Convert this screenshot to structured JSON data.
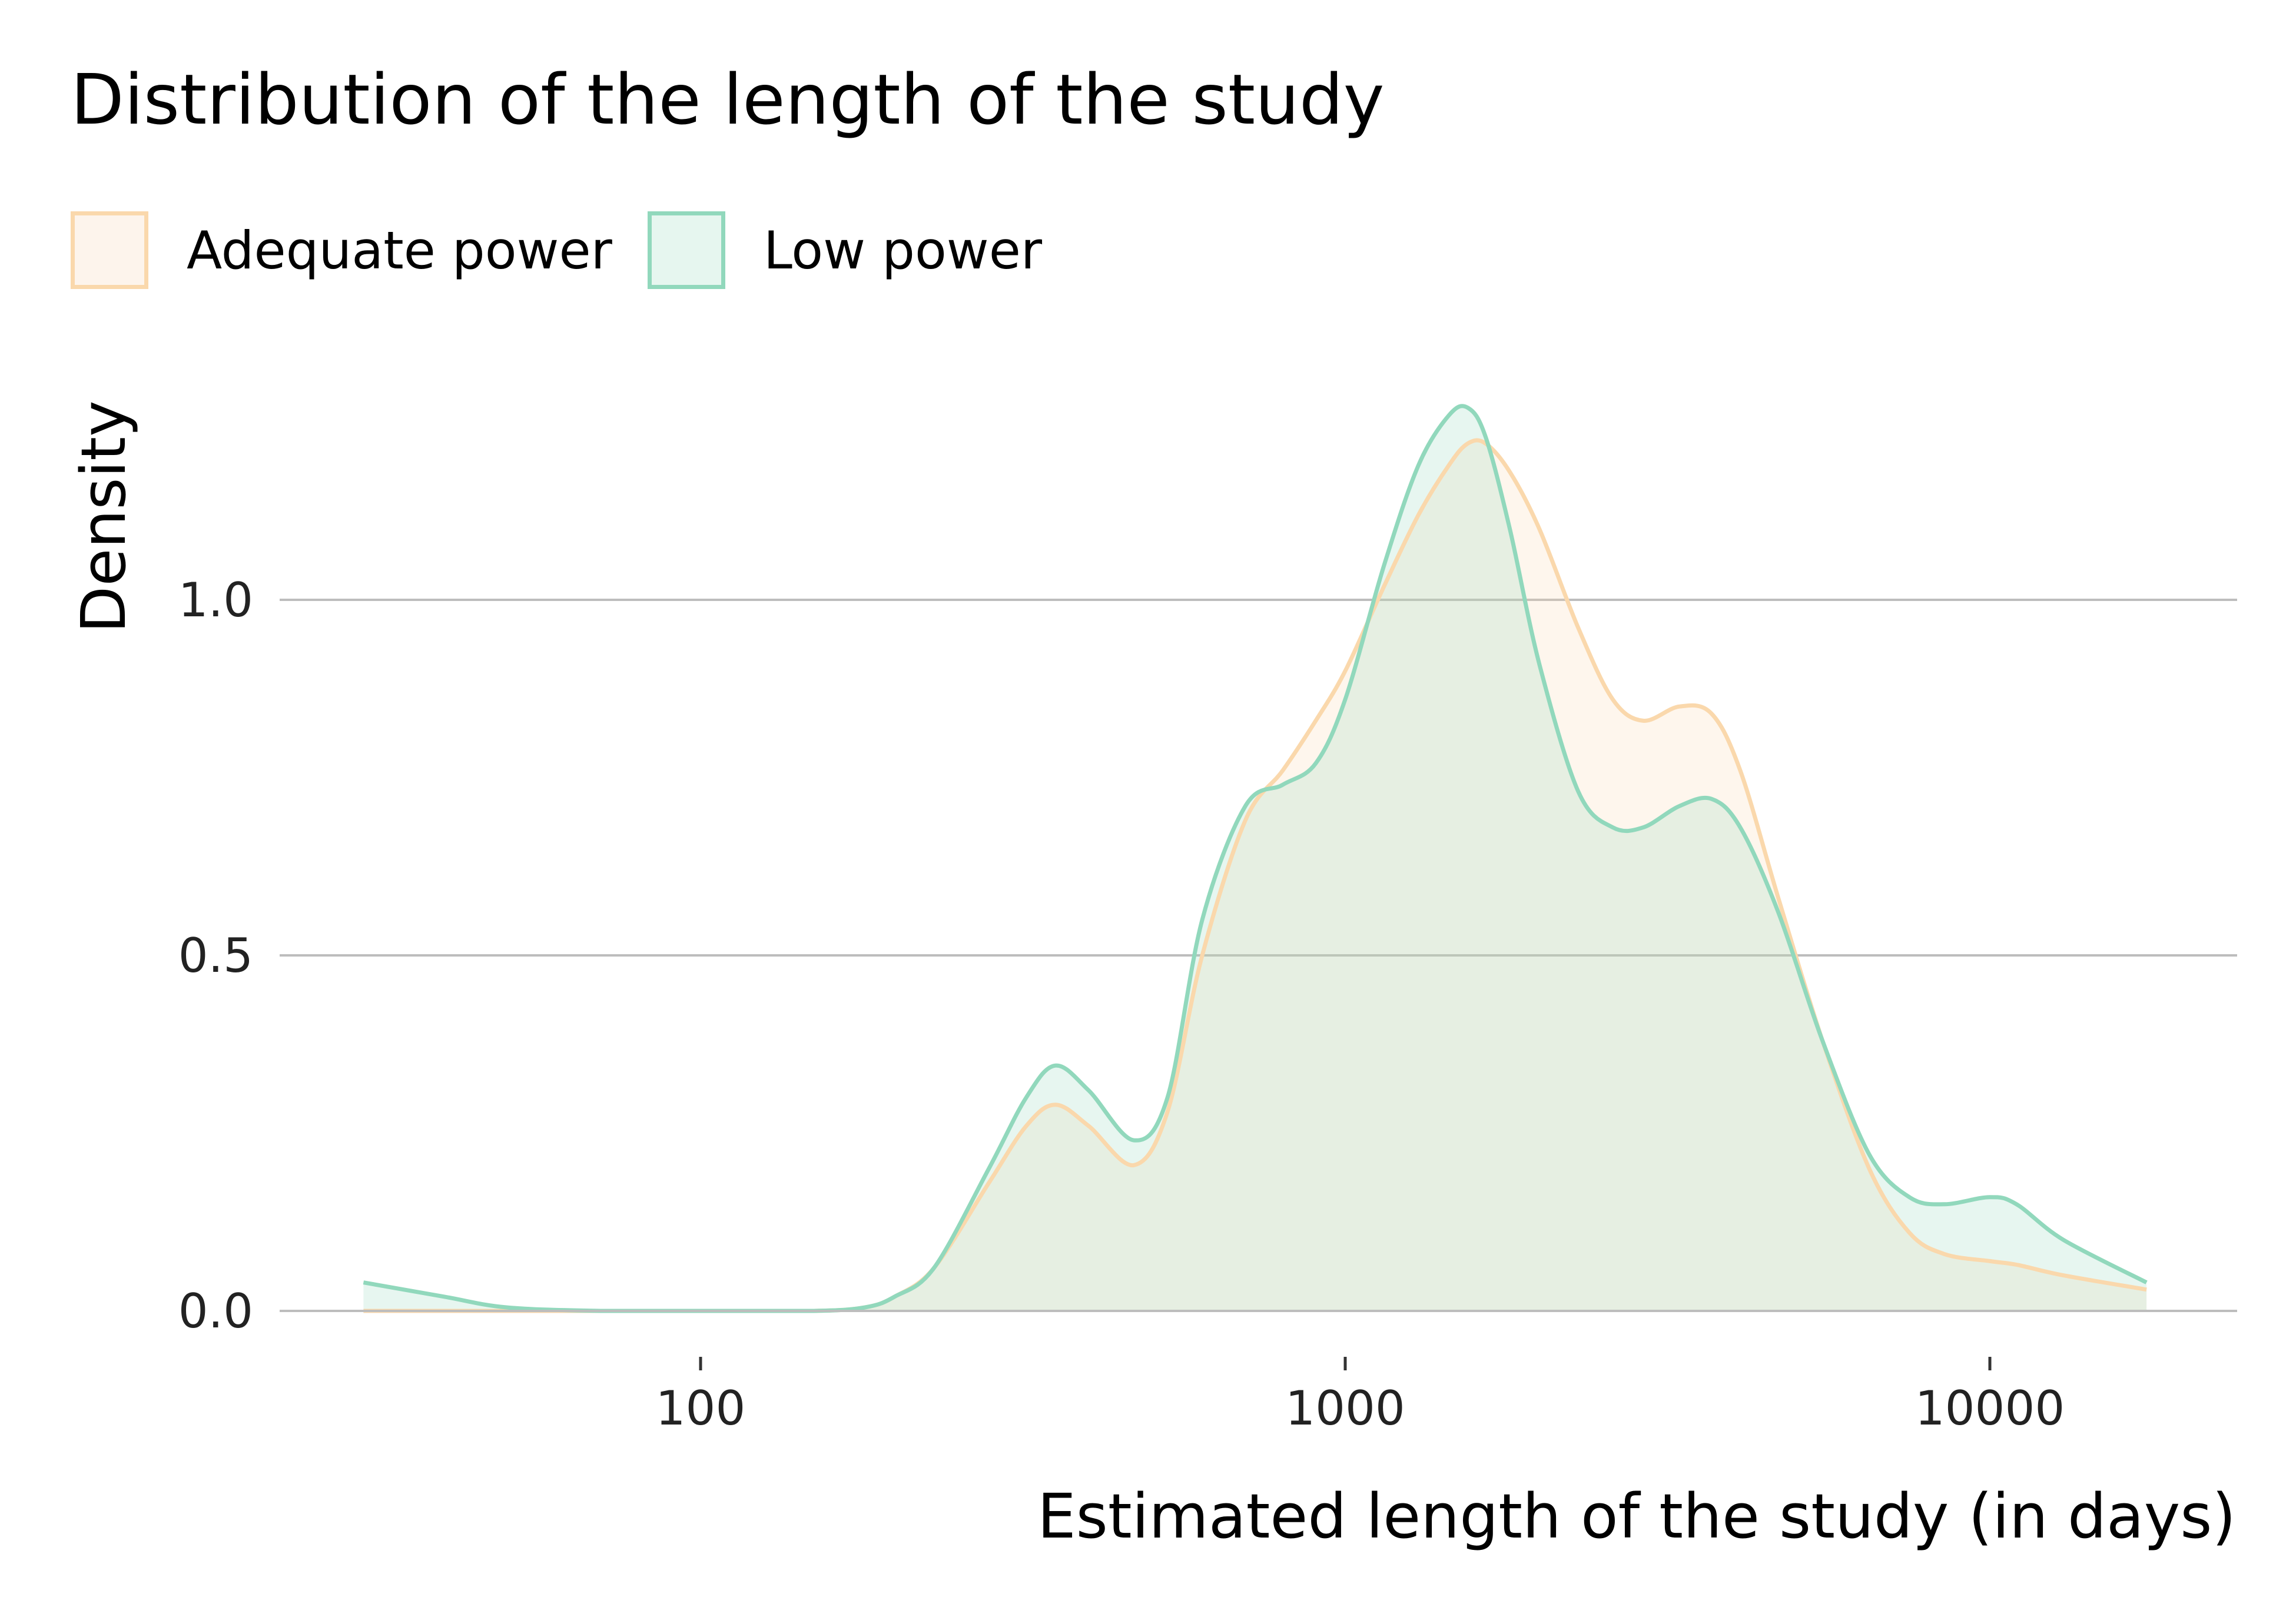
{
  "chart_data": {
    "type": "area",
    "title": "Distribution of the length of the study",
    "xlabel": "Estimated length of the study (in days)",
    "ylabel": "Density",
    "x_scale": "log10",
    "xlim": [
      25,
      20000
    ],
    "ylim": [
      0,
      1.3
    ],
    "x_ticks": [
      {
        "value": 100,
        "label": "100"
      },
      {
        "value": 1000,
        "label": "1000"
      },
      {
        "value": 10000,
        "label": "10000"
      }
    ],
    "y_ticks": [
      {
        "value": 0,
        "label": "0.0"
      },
      {
        "value": 0.5,
        "label": "0.5"
      },
      {
        "value": 1.0,
        "label": "1.0"
      }
    ],
    "grid": "horizontal major lines",
    "legend_placement": "top-left",
    "x": [
      30,
      40,
      50,
      70,
      100,
      150,
      180,
      200,
      230,
      280,
      320,
      355,
      400,
      470,
      530,
      600,
      700,
      800,
      900,
      1000,
      1150,
      1300,
      1450,
      1550,
      1650,
      1800,
      2000,
      2300,
      2600,
      2900,
      3300,
      3700,
      4100,
      4700,
      5500,
      6500,
      7500,
      8500,
      10000,
      11000,
      13000,
      17500
    ],
    "series": [
      {
        "name": "Adequate power",
        "color": "#FAD8AC",
        "fill": "#FDF4EC",
        "values": [
          0.0,
          0.0,
          0.0,
          0.0,
          0.0,
          0.0,
          0.005,
          0.02,
          0.06,
          0.18,
          0.26,
          0.29,
          0.26,
          0.205,
          0.28,
          0.5,
          0.69,
          0.76,
          0.83,
          0.9,
          1.02,
          1.12,
          1.19,
          1.22,
          1.22,
          1.18,
          1.1,
          0.96,
          0.86,
          0.83,
          0.85,
          0.84,
          0.76,
          0.58,
          0.38,
          0.2,
          0.11,
          0.08,
          0.07,
          0.065,
          0.05,
          0.03
        ]
      },
      {
        "name": "Low power",
        "color": "#91D8BC",
        "fill": "#E6F6EF",
        "values": [
          0.04,
          0.02,
          0.005,
          0.0,
          0.0,
          0.0,
          0.005,
          0.02,
          0.06,
          0.2,
          0.3,
          0.345,
          0.31,
          0.24,
          0.3,
          0.55,
          0.71,
          0.74,
          0.77,
          0.86,
          1.05,
          1.19,
          1.26,
          1.27,
          1.23,
          1.1,
          0.91,
          0.73,
          0.68,
          0.68,
          0.71,
          0.72,
          0.68,
          0.56,
          0.38,
          0.22,
          0.16,
          0.15,
          0.16,
          0.15,
          0.1,
          0.04
        ]
      }
    ]
  }
}
